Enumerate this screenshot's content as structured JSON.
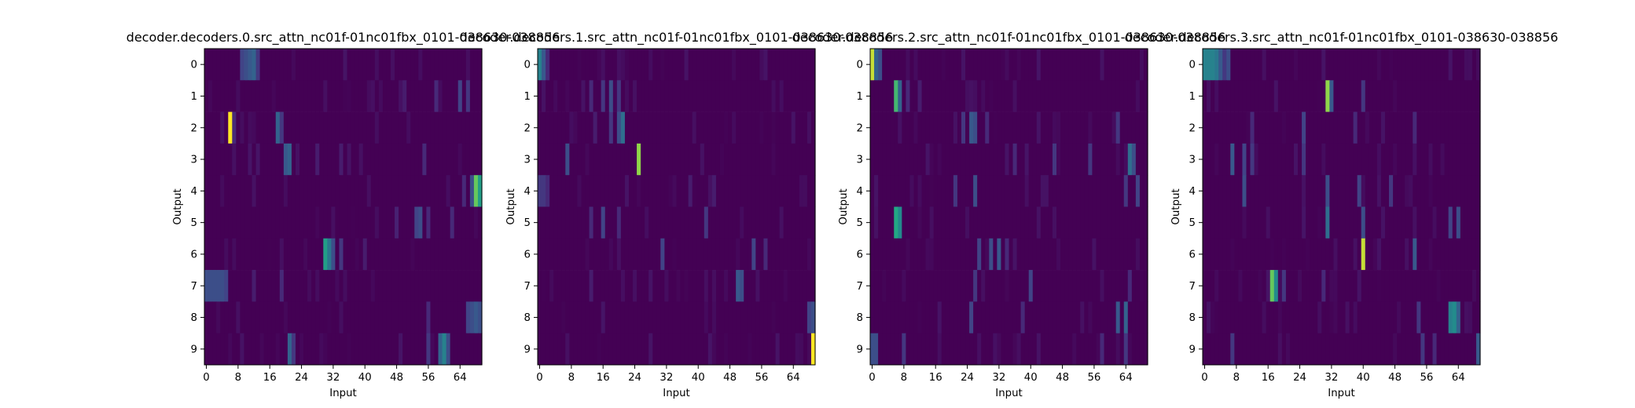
{
  "figure": {
    "background": "#ffffff"
  },
  "chart_data": [
    {
      "type": "heatmap",
      "title": "decoder.decoders.0.src_attn_nc01f-01nc01fbx_0101-038630-038856",
      "xlabel": "Input",
      "ylabel": "Output",
      "xticks": [
        0,
        8,
        16,
        24,
        32,
        40,
        48,
        56,
        64
      ],
      "yticks": [
        0,
        1,
        2,
        3,
        4,
        5,
        6,
        7,
        8,
        9
      ],
      "xlim": [
        0,
        70
      ],
      "ylim": [
        0,
        10
      ],
      "colormap": "viridis",
      "zlim": [
        0,
        1
      ],
      "hotspots": [
        [
          [
            9,
            0.25
          ],
          [
            10,
            0.3
          ],
          [
            11,
            0.35
          ],
          [
            12,
            0.4
          ],
          [
            13,
            0.2
          ]
        ],
        [
          [
            50,
            0.1
          ],
          [
            58,
            0.15
          ],
          [
            64,
            0.25
          ],
          [
            66,
            0.2
          ]
        ],
        [
          [
            6,
            1.0
          ],
          [
            7,
            0.15
          ],
          [
            18,
            0.4
          ],
          [
            19,
            0.2
          ]
        ],
        [
          [
            20,
            0.35
          ],
          [
            21,
            0.4
          ],
          [
            28,
            0.1
          ],
          [
            34,
            0.1
          ],
          [
            55,
            0.15
          ]
        ],
        [
          [
            68,
            0.85
          ],
          [
            69,
            0.7
          ],
          [
            67,
            0.3
          ],
          [
            65,
            0.15
          ]
        ],
        [
          [
            48,
            0.12
          ],
          [
            53,
            0.25
          ],
          [
            54,
            0.3
          ],
          [
            56,
            0.15
          ],
          [
            62,
            0.15
          ]
        ],
        [
          [
            30,
            0.7
          ],
          [
            31,
            0.5
          ],
          [
            32,
            0.3
          ],
          [
            34,
            0.2
          ],
          [
            40,
            0.1
          ]
        ],
        [
          [
            0,
            0.3
          ],
          [
            1,
            0.3
          ],
          [
            2,
            0.3
          ],
          [
            3,
            0.3
          ],
          [
            4,
            0.3
          ],
          [
            5,
            0.25
          ],
          [
            12,
            0.1
          ],
          [
            19,
            0.15
          ]
        ],
        [
          [
            56,
            0.15
          ],
          [
            66,
            0.25
          ],
          [
            67,
            0.3
          ],
          [
            68,
            0.35
          ],
          [
            69,
            0.3
          ]
        ],
        [
          [
            21,
            0.4
          ],
          [
            22,
            0.2
          ],
          [
            56,
            0.2
          ],
          [
            59,
            0.4
          ],
          [
            60,
            0.55
          ],
          [
            61,
            0.3
          ]
        ]
      ]
    },
    {
      "type": "heatmap",
      "title": "decoder.decoders.1.src_attn_nc01f-01nc01fbx_0101-038630-038856",
      "xlabel": "Input",
      "ylabel": "Output",
      "xticks": [
        0,
        8,
        16,
        24,
        32,
        40,
        48,
        56,
        64
      ],
      "yticks": [
        0,
        1,
        2,
        3,
        4,
        5,
        6,
        7,
        8,
        9
      ],
      "xlim": [
        0,
        70
      ],
      "ylim": [
        0,
        10
      ],
      "colormap": "viridis",
      "zlim": [
        0,
        1
      ],
      "hotspots": [
        [
          [
            0,
            0.55
          ],
          [
            1,
            0.35
          ],
          [
            2,
            0.15
          ]
        ],
        [
          [
            13,
            0.15
          ],
          [
            16,
            0.2
          ],
          [
            18,
            0.3
          ],
          [
            20,
            0.2
          ]
        ],
        [
          [
            14,
            0.1
          ],
          [
            18,
            0.2
          ],
          [
            20,
            0.3
          ],
          [
            21,
            0.45
          ]
        ],
        [
          [
            7,
            0.3
          ],
          [
            25,
            0.9
          ]
        ],
        [
          [
            0,
            0.2
          ],
          [
            1,
            0.2
          ],
          [
            2,
            0.15
          ],
          [
            38,
            0.1
          ],
          [
            44,
            0.1
          ]
        ],
        [
          [
            13,
            0.15
          ],
          [
            16,
            0.25
          ],
          [
            20,
            0.15
          ],
          [
            42,
            0.2
          ]
        ],
        [
          [
            31,
            0.25
          ],
          [
            54,
            0.25
          ],
          [
            57,
            0.15
          ]
        ],
        [
          [
            13,
            0.1
          ],
          [
            50,
            0.35
          ],
          [
            51,
            0.3
          ]
        ],
        [
          [
            68,
            0.25
          ],
          [
            69,
            0.3
          ]
        ],
        [
          [
            69,
            1.0
          ]
        ]
      ]
    },
    {
      "type": "heatmap",
      "title": "decoder.decoders.2.src_attn_nc01f-01nc01fbx_0101-038630-038856",
      "xlabel": "Input",
      "ylabel": "Output",
      "xticks": [
        0,
        8,
        16,
        24,
        32,
        40,
        48,
        56,
        64
      ],
      "yticks": [
        0,
        1,
        2,
        3,
        4,
        5,
        6,
        7,
        8,
        9
      ],
      "xlim": [
        0,
        70
      ],
      "ylim": [
        0,
        10
      ],
      "colormap": "viridis",
      "zlim": [
        0,
        1
      ],
      "hotspots": [
        [
          [
            0,
            0.95
          ],
          [
            1,
            0.4
          ],
          [
            2,
            0.3
          ]
        ],
        [
          [
            6,
            0.8
          ],
          [
            7,
            0.4
          ],
          [
            9,
            0.15
          ],
          [
            12,
            0.1
          ]
        ],
        [
          [
            23,
            0.2
          ],
          [
            25,
            0.35
          ],
          [
            26,
            0.3
          ],
          [
            29,
            0.15
          ],
          [
            62,
            0.2
          ]
        ],
        [
          [
            36,
            0.15
          ],
          [
            46,
            0.2
          ],
          [
            55,
            0.2
          ],
          [
            65,
            0.45
          ],
          [
            66,
            0.3
          ]
        ],
        [
          [
            21,
            0.2
          ],
          [
            26,
            0.3
          ],
          [
            64,
            0.2
          ],
          [
            67,
            0.25
          ]
        ],
        [
          [
            6,
            0.75
          ],
          [
            7,
            0.6
          ]
        ],
        [
          [
            27,
            0.25
          ],
          [
            30,
            0.3
          ],
          [
            32,
            0.35
          ],
          [
            34,
            0.15
          ]
        ],
        [
          [
            26,
            0.2
          ],
          [
            40,
            0.25
          ],
          [
            65,
            0.15
          ]
        ],
        [
          [
            25,
            0.25
          ],
          [
            38,
            0.15
          ],
          [
            62,
            0.35
          ],
          [
            64,
            0.4
          ]
        ],
        [
          [
            0,
            0.3
          ],
          [
            1,
            0.3
          ],
          [
            8,
            0.2
          ],
          [
            58,
            0.15
          ],
          [
            64,
            0.2
          ]
        ]
      ]
    },
    {
      "type": "heatmap",
      "title": "decoder.decoders.3.src_attn_nc01f-01nc01fbx_0101-038630-038856",
      "xlabel": "Input",
      "ylabel": "Output",
      "xticks": [
        0,
        8,
        16,
        24,
        32,
        40,
        48,
        56,
        64
      ],
      "yticks": [
        0,
        1,
        2,
        3,
        4,
        5,
        6,
        7,
        8,
        9
      ],
      "xlim": [
        0,
        70
      ],
      "ylim": [
        0,
        10
      ],
      "colormap": "viridis",
      "zlim": [
        0,
        1
      ],
      "hotspots": [
        [
          [
            0,
            0.55
          ],
          [
            1,
            0.55
          ],
          [
            2,
            0.55
          ],
          [
            3,
            0.5
          ],
          [
            4,
            0.35
          ],
          [
            5,
            0.2
          ],
          [
            6,
            0.3
          ]
        ],
        [
          [
            31,
            0.9
          ],
          [
            32,
            0.35
          ],
          [
            40,
            0.2
          ]
        ],
        [
          [
            12,
            0.15
          ],
          [
            25,
            0.25
          ],
          [
            38,
            0.15
          ],
          [
            53,
            0.15
          ]
        ],
        [
          [
            7,
            0.35
          ],
          [
            10,
            0.25
          ],
          [
            12,
            0.2
          ],
          [
            25,
            0.2
          ]
        ],
        [
          [
            10,
            0.3
          ],
          [
            31,
            0.3
          ],
          [
            39,
            0.25
          ],
          [
            47,
            0.2
          ]
        ],
        [
          [
            31,
            0.45
          ],
          [
            40,
            0.3
          ],
          [
            62,
            0.25
          ],
          [
            64,
            0.3
          ]
        ],
        [
          [
            40,
            0.95
          ],
          [
            53,
            0.35
          ]
        ],
        [
          [
            17,
            0.85
          ],
          [
            18,
            0.6
          ],
          [
            20,
            0.2
          ],
          [
            30,
            0.15
          ]
        ],
        [
          [
            54,
            0.2
          ],
          [
            62,
            0.55
          ],
          [
            63,
            0.6
          ],
          [
            64,
            0.4
          ]
        ],
        [
          [
            7,
            0.2
          ],
          [
            55,
            0.2
          ],
          [
            58,
            0.15
          ],
          [
            69,
            0.35
          ]
        ]
      ]
    }
  ]
}
